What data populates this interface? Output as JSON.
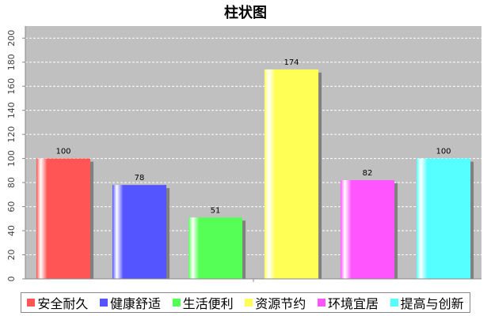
{
  "chart_data": {
    "type": "bar",
    "title": "柱状图",
    "categories": [
      "安全耐久",
      "健康舒适",
      "生活便利",
      "资源节约",
      "环境宜居",
      "提高与创新"
    ],
    "values": [
      100,
      78,
      51,
      174,
      82,
      100
    ],
    "colors": [
      "#ff5555",
      "#5555ff",
      "#55ff55",
      "#ffff55",
      "#ff55ff",
      "#55ffff"
    ],
    "ylim": [
      0,
      210
    ],
    "yticks": [
      0,
      20,
      40,
      60,
      80,
      100,
      120,
      140,
      160,
      180,
      200
    ],
    "grid": true,
    "background": "#c0c0c0",
    "legend_position": "bottom"
  }
}
